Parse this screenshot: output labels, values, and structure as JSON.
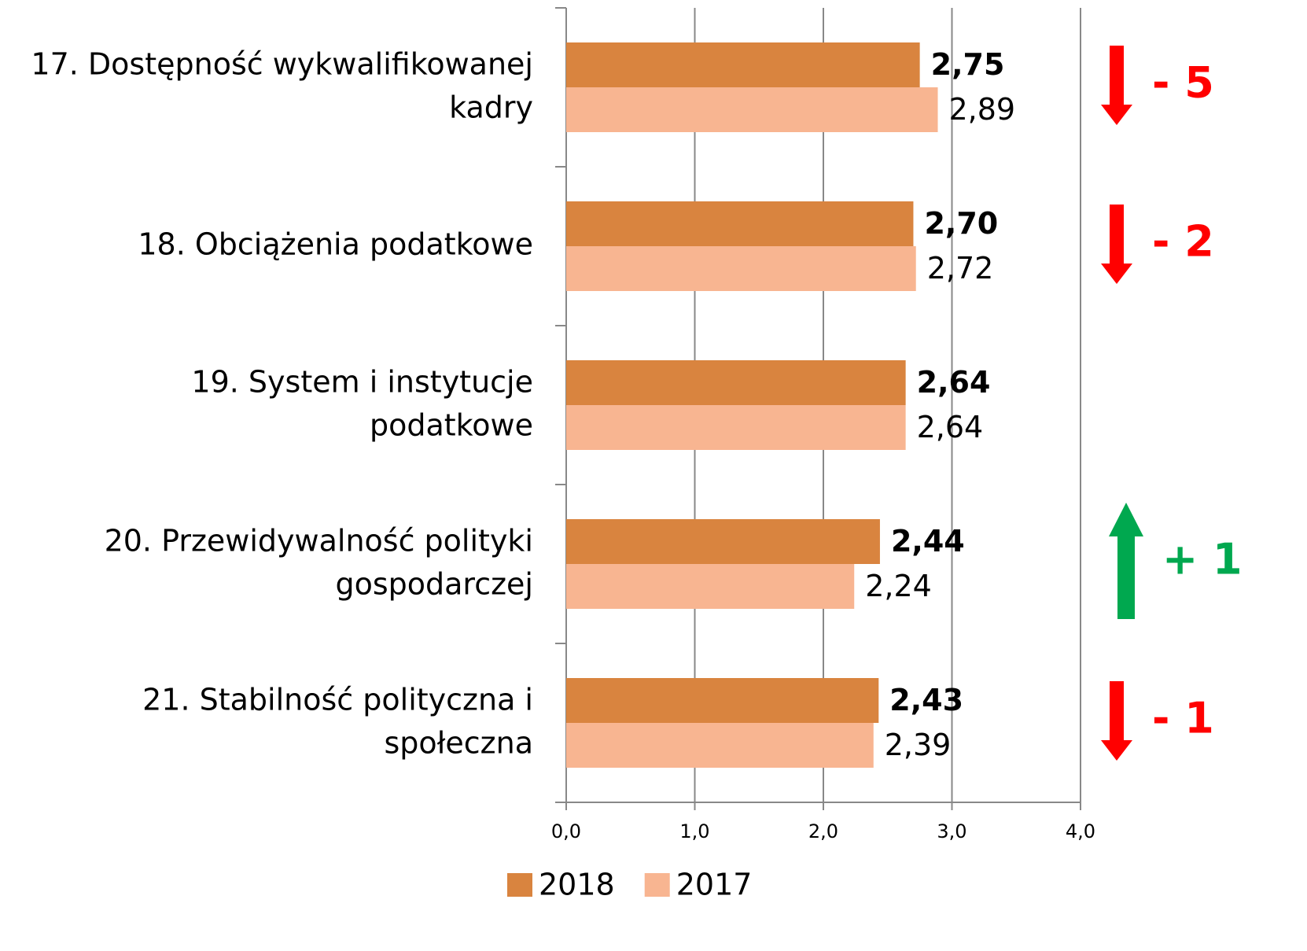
{
  "chart_data": {
    "type": "bar",
    "orientation": "horizontal",
    "categories": [
      "17. Dostępność wykwalifikowanej kadry",
      "18. Obciążenia podatkowe",
      "19. System i instytucje podatkowe",
      "20. Przewidywalność polityki gospodarczej",
      "21. Stabilność polityczna i społeczna"
    ],
    "series": [
      {
        "name": "2018",
        "color": "#d9843f",
        "values": [
          2.75,
          2.7,
          2.64,
          2.44,
          2.43
        ],
        "value_labels": [
          "2,75",
          "2,70",
          "2,64",
          "2,44",
          "2,43"
        ],
        "bold": true
      },
      {
        "name": "2017",
        "color": "#f8b591",
        "values": [
          2.89,
          2.72,
          2.64,
          2.24,
          2.39
        ],
        "value_labels": [
          "2,89",
          "2,72",
          "2,64",
          "2,24",
          "2,39"
        ],
        "bold": false
      }
    ],
    "xlim": [
      0,
      4
    ],
    "xticks": [
      {
        "value": 0,
        "label": "0,0"
      },
      {
        "value": 1,
        "label": "1,0"
      },
      {
        "value": 2,
        "label": "2,0"
      },
      {
        "value": 3,
        "label": "3,0"
      },
      {
        "value": 4,
        "label": "4,0"
      }
    ],
    "grid": true,
    "legend": "bottom",
    "rank_changes": [
      {
        "text": "- 5",
        "color": "#ff0000"
      },
      {
        "text": "- 2",
        "color": "#ff0000"
      },
      null,
      {
        "text": "+ 1",
        "color": "#00a84f"
      },
      {
        "text": "- 1",
        "color": "#ff0000"
      }
    ]
  }
}
